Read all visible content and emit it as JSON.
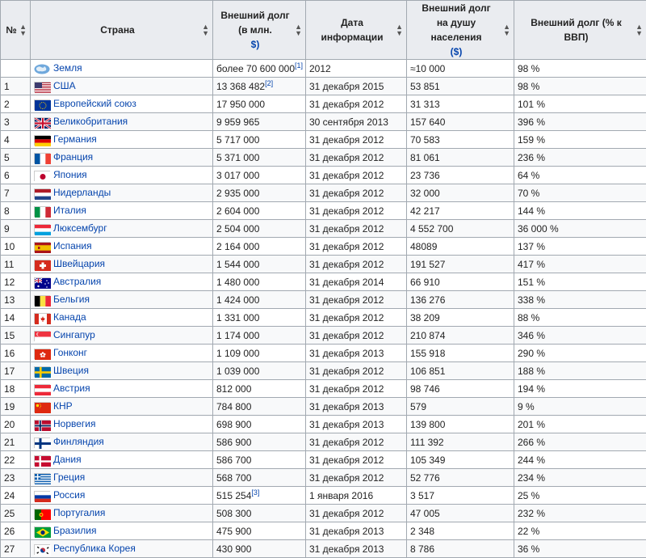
{
  "headers": {
    "num": "№",
    "country": "Страна",
    "debt_line1": "Внешний долг",
    "debt_line2": "(в млн.",
    "debt_line3": "$)",
    "date": "Дата информации",
    "per_capita_line1": "Внешний долг",
    "per_capita_line2": "на душу населения",
    "per_capita_line3": "($)",
    "gdp": "Внешний долг (% к ВВП)"
  },
  "rows": [
    {
      "num": "",
      "country": "Земля",
      "flag": "globe-icon",
      "debt": "более 70 600 000",
      "ref": "[1]",
      "date": "2012",
      "per_capita": "≈10 000",
      "gdp": "98 %"
    },
    {
      "num": "1",
      "country": "США",
      "flag": "flag-usa",
      "debt": "13 368 482",
      "ref": "[2]",
      "date": "31 декабря 2015",
      "per_capita": "53 851",
      "gdp": "98 %"
    },
    {
      "num": "2",
      "country": "Европейский союз",
      "flag": "flag-eu",
      "debt": "17 950 000",
      "ref": "",
      "date": "31 декабря 2012",
      "per_capita": "31 313",
      "gdp": "101 %"
    },
    {
      "num": "3",
      "country": "Великобритания",
      "flag": "flag-uk",
      "debt": "9 959 965",
      "ref": "",
      "date": "30 сентября 2013",
      "per_capita": "157 640",
      "gdp": "396 %"
    },
    {
      "num": "4",
      "country": "Германия",
      "flag": "flag-germany",
      "debt": "5 717 000",
      "ref": "",
      "date": "31 декабря 2012",
      "per_capita": "70 583",
      "gdp": "159 %"
    },
    {
      "num": "5",
      "country": "Франция",
      "flag": "flag-france",
      "debt": "5 371 000",
      "ref": "",
      "date": "31 декабря 2012",
      "per_capita": "81 061",
      "gdp": "236 %"
    },
    {
      "num": "6",
      "country": "Япония",
      "flag": "flag-japan",
      "debt": "3 017 000",
      "ref": "",
      "date": "31 декабря 2012",
      "per_capita": "23 736",
      "gdp": "64 %"
    },
    {
      "num": "7",
      "country": "Нидерланды",
      "flag": "flag-netherlands",
      "debt": "2 935 000",
      "ref": "",
      "date": "31 декабря 2012",
      "per_capita": "32 000",
      "gdp": "70 %"
    },
    {
      "num": "8",
      "country": "Италия",
      "flag": "flag-italy",
      "debt": "2 604 000",
      "ref": "",
      "date": "31 декабря 2012",
      "per_capita": "42 217",
      "gdp": "144 %"
    },
    {
      "num": "9",
      "country": "Люксембург",
      "flag": "flag-luxembourg",
      "debt": "2 504 000",
      "ref": "",
      "date": "31 декабря 2012",
      "per_capita": "4 552 700",
      "gdp": "36 000 %"
    },
    {
      "num": "10",
      "country": "Испания",
      "flag": "flag-spain",
      "debt": "2 164 000",
      "ref": "",
      "date": "31 декабря 2012",
      "per_capita": "48089",
      "gdp": "137 %"
    },
    {
      "num": "11",
      "country": "Швейцария",
      "flag": "flag-switzerland",
      "debt": "1 544 000",
      "ref": "",
      "date": "31 декабря 2012",
      "per_capita": "191 527",
      "gdp": "417 %"
    },
    {
      "num": "12",
      "country": "Австралия",
      "flag": "flag-australia",
      "debt": "1 480 000",
      "ref": "",
      "date": "31 декабря 2014",
      "per_capita": "66 910",
      "gdp": "151 %"
    },
    {
      "num": "13",
      "country": "Бельгия",
      "flag": "flag-belgium",
      "debt": "1 424 000",
      "ref": "",
      "date": "31 декабря 2012",
      "per_capita": "136 276",
      "gdp": "338 %"
    },
    {
      "num": "14",
      "country": "Канада",
      "flag": "flag-canada",
      "debt": "1 331 000",
      "ref": "",
      "date": "31 декабря 2012",
      "per_capita": "38 209",
      "gdp": "88 %"
    },
    {
      "num": "15",
      "country": "Сингапур",
      "flag": "flag-singapore",
      "debt": "1 174 000",
      "ref": "",
      "date": "31 декабря 2012",
      "per_capita": "210 874",
      "gdp": "346 %"
    },
    {
      "num": "16",
      "country": "Гонконг",
      "flag": "flag-hongkong",
      "debt": "1 109 000",
      "ref": "",
      "date": "31 декабря 2013",
      "per_capita": "155 918",
      "gdp": "290 %"
    },
    {
      "num": "17",
      "country": "Швеция",
      "flag": "flag-sweden",
      "debt": "1 039 000",
      "ref": "",
      "date": "31 декабря 2012",
      "per_capita": "106 851",
      "gdp": "188 %"
    },
    {
      "num": "18",
      "country": "Австрия",
      "flag": "flag-austria",
      "debt": "812 000",
      "ref": "",
      "date": "31 декабря 2012",
      "per_capita": "98 746",
      "gdp": "194 %"
    },
    {
      "num": "19",
      "country": "КНР",
      "flag": "flag-china",
      "debt": "784 800",
      "ref": "",
      "date": "31 декабря 2013",
      "per_capita": "579",
      "gdp": "9 %"
    },
    {
      "num": "20",
      "country": "Норвегия",
      "flag": "flag-norway",
      "debt": "698 900",
      "ref": "",
      "date": "31 декабря 2013",
      "per_capita": "139 800",
      "gdp": "201 %"
    },
    {
      "num": "21",
      "country": "Финляндия",
      "flag": "flag-finland",
      "debt": "586 900",
      "ref": "",
      "date": "31 декабря 2012",
      "per_capita": "111 392",
      "gdp": "266 %"
    },
    {
      "num": "22",
      "country": "Дания",
      "flag": "flag-denmark",
      "debt": "586 700",
      "ref": "",
      "date": "31 декабря 2012",
      "per_capita": "105 349",
      "gdp": "244 %"
    },
    {
      "num": "23",
      "country": "Греция",
      "flag": "flag-greece",
      "debt": "568 700",
      "ref": "",
      "date": "31 декабря 2012",
      "per_capita": "52 776",
      "gdp": "234 %"
    },
    {
      "num": "24",
      "country": "Россия",
      "flag": "flag-russia",
      "debt": "515 254",
      "ref": "[3]",
      "date": "1 января 2016",
      "per_capita": "3 517",
      "gdp": "25 %"
    },
    {
      "num": "25",
      "country": "Португалия",
      "flag": "flag-portugal",
      "debt": "508 300",
      "ref": "",
      "date": "31 декабря 2012",
      "per_capita": "47 005",
      "gdp": "232 %"
    },
    {
      "num": "26",
      "country": "Бразилия",
      "flag": "flag-brazil",
      "debt": "475 900",
      "ref": "",
      "date": "31 декабря 2013",
      "per_capita": "2 348",
      "gdp": "22 %"
    },
    {
      "num": "27",
      "country": "Республика Корея",
      "flag": "flag-korea",
      "debt": "430 900",
      "ref": "",
      "date": "31 декабря 2013",
      "per_capita": "8 786",
      "gdp": "36 %"
    }
  ]
}
